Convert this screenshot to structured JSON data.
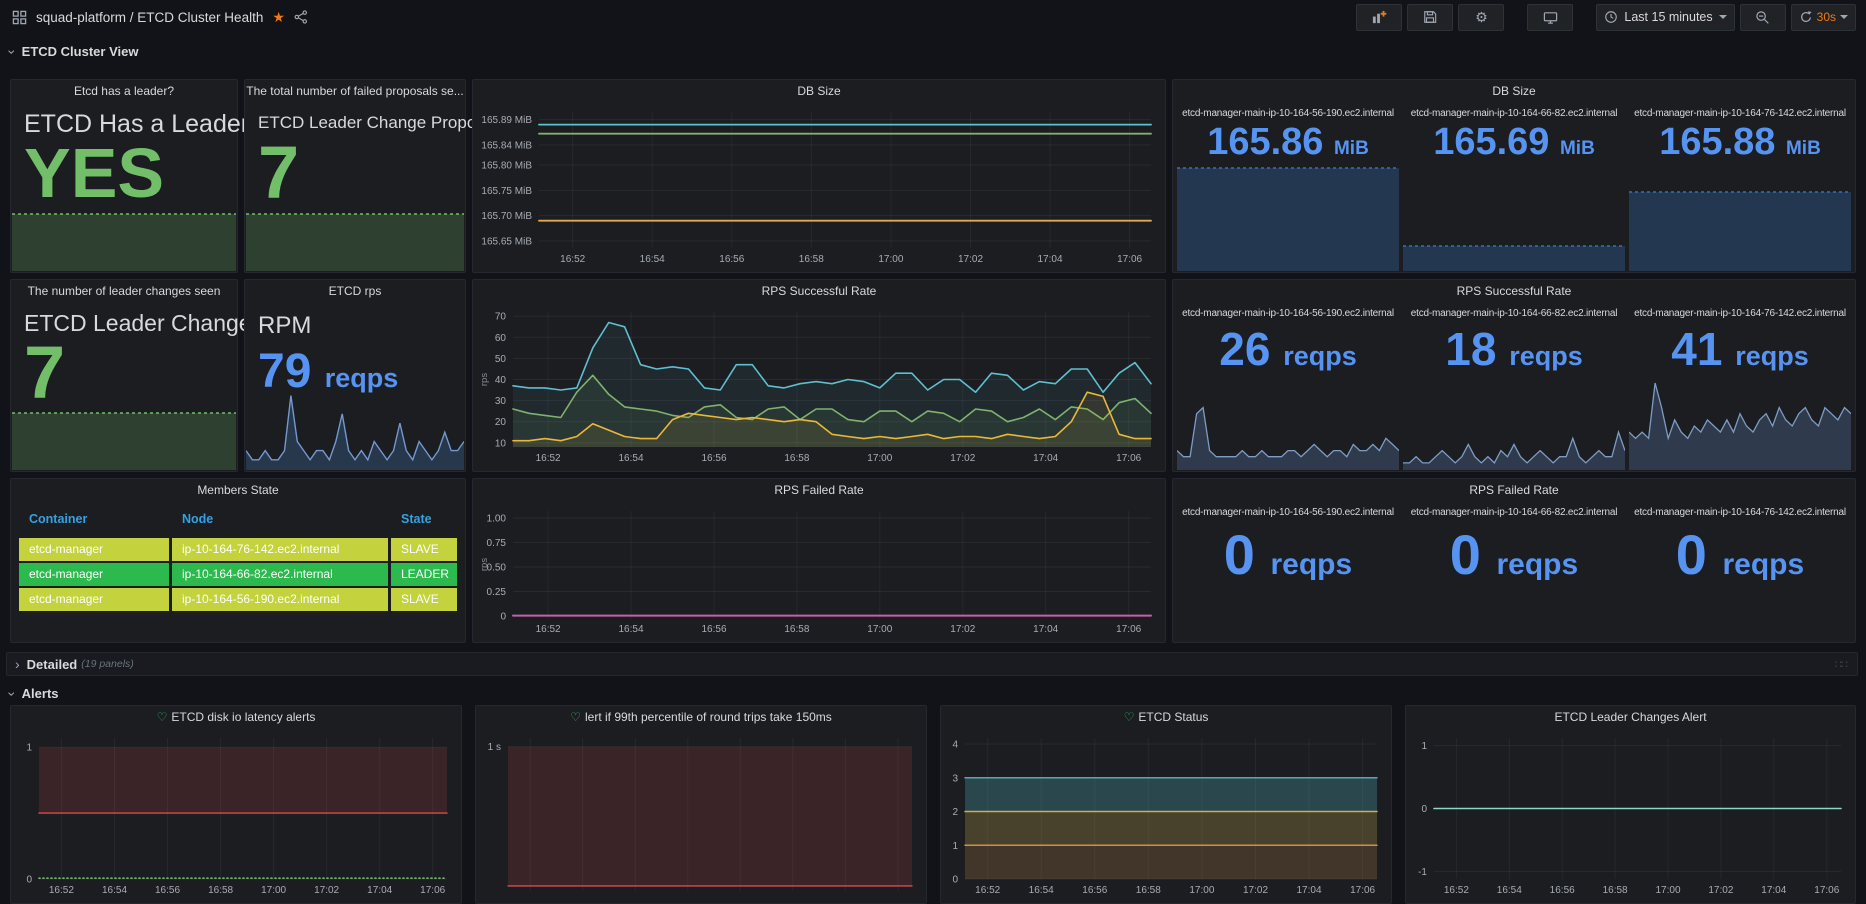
{
  "header": {
    "breadcrumb": "squad-platform / ETCD Cluster Health",
    "toolbar": {
      "time_range": "Last 15 minutes",
      "refresh_interval": "30s"
    }
  },
  "sections": {
    "cluster_view": {
      "label": "ETCD Cluster View"
    },
    "detailed": {
      "label": "Detailed",
      "meta": "(19 panels)"
    },
    "alerts": {
      "label": "Alerts"
    }
  },
  "time_ticks": [
    {
      "f": 0.055,
      "label": "16:52"
    },
    {
      "f": 0.185,
      "label": "16:54"
    },
    {
      "f": 0.315,
      "label": "16:56"
    },
    {
      "f": 0.445,
      "label": "16:58"
    },
    {
      "f": 0.575,
      "label": "17:00"
    },
    {
      "f": 0.705,
      "label": "17:02"
    },
    {
      "f": 0.835,
      "label": "17:04"
    },
    {
      "f": 0.965,
      "label": "17:06"
    }
  ],
  "panels": {
    "has_leader": {
      "title": "Etcd has a leader?",
      "subtitle": "ETCD Has a Leader?",
      "value": "YES",
      "spark": {
        "values": [
          1,
          1
        ],
        "yMax": 1,
        "color": "#73bf69",
        "dash": "3 3",
        "fillColor": "rgba(115,191,105,0.22)",
        "width": 1.5
      }
    },
    "proposals": {
      "title": "The total number of failed proposals se...",
      "subtitle": "ETCD Leader Change Proposals",
      "value": "7",
      "spark": {
        "values": [
          1,
          1
        ],
        "yMax": 1,
        "color": "#73bf69",
        "dash": "3 3",
        "fillColor": "rgba(115,191,105,0.22)",
        "width": 1.5
      }
    },
    "db_chart": {
      "title": "DB Size",
      "chart": {
        "ml": 62,
        "yMin": 165.636,
        "yMax": 165.905,
        "yTicks": [
          [
            165.89,
            "165.89 MiB"
          ],
          [
            165.84,
            "165.84 MiB"
          ],
          [
            165.8,
            "165.80 MiB"
          ],
          [
            165.75,
            "165.75 MiB"
          ],
          [
            165.7,
            "165.70 MiB"
          ],
          [
            165.65,
            "165.65 MiB"
          ]
        ],
        "xTicks": "time",
        "series": [
          {
            "color": "#5fc2ce",
            "width": 1.8,
            "values": [
              165.88,
              165.88
            ]
          },
          {
            "color": "#7eb26d",
            "width": 1.8,
            "values": [
              165.862,
              165.862
            ]
          },
          {
            "color": "#e2a94f",
            "width": 1.8,
            "values": [
              165.69,
              165.69
            ]
          }
        ]
      }
    },
    "db_stats": {
      "title": "DB Size",
      "stats": [
        {
          "label": "etcd-manager-main-ip-10-164-56-190.ec2.internal",
          "value": "165.86",
          "unit": "MiB"
        },
        {
          "label": "etcd-manager-main-ip-10-164-66-82.ec2.internal",
          "value": "165.69",
          "unit": "MiB"
        },
        {
          "label": "etcd-manager-main-ip-10-164-76-142.ec2.internal",
          "value": "165.88",
          "unit": "MiB"
        }
      ],
      "sparks": [
        {
          "values": [
            1,
            1
          ],
          "yMax": 1,
          "color": "#3f6ea8",
          "dash": "3 3",
          "fillColor": "rgba(46,89,140,0.45)",
          "width": 1.4
        },
        {
          "values": [
            1,
            1
          ],
          "yMax": 1,
          "color": "#3f6ea8",
          "dash": "3 3",
          "fillColor": "rgba(46,89,140,0.45)",
          "width": 1.4
        },
        {
          "values": [
            1,
            1
          ],
          "yMax": 1,
          "color": "#3f6ea8",
          "dash": "3 3",
          "fillColor": "rgba(46,89,140,0.45)",
          "width": 1.4
        }
      ]
    },
    "leader_changes": {
      "title": "The number of leader changes seen",
      "subtitle": "ETCD Leader Changes",
      "value": "7",
      "spark": {
        "values": [
          1,
          1
        ],
        "yMax": 1,
        "color": "#73bf69",
        "dash": "3 3",
        "fillColor": "rgba(115,191,105,0.22)",
        "width": 1.5
      }
    },
    "rpm": {
      "title": "ETCD rps",
      "subtitle": "RPM",
      "value": "79",
      "unit": "reqps",
      "spark": {
        "values": [
          2,
          1,
          1,
          2,
          1,
          1,
          2,
          8,
          3,
          2,
          1,
          2,
          2,
          1,
          3,
          6,
          2,
          1,
          2,
          1,
          3,
          2,
          1,
          2,
          5,
          2,
          1,
          3,
          2,
          1,
          2,
          4,
          2,
          2,
          3
        ],
        "yMax": 8.5,
        "color": "#7499cc",
        "fillColor": "rgba(70,115,175,0.30)",
        "width": 1.4
      }
    },
    "success_chart": {
      "title": "RPS Successful Rate",
      "chart": {
        "ml": 36,
        "ylabel": "rps",
        "yMin": 8,
        "yMax": 72,
        "yTicks": [
          [
            70,
            "70"
          ],
          [
            60,
            "60"
          ],
          [
            50,
            "50"
          ],
          [
            40,
            "40"
          ],
          [
            30,
            "30"
          ],
          [
            20,
            "20"
          ],
          [
            10,
            "10"
          ]
        ],
        "xTicks": "time",
        "series": [
          {
            "color": "#5fbfd0",
            "width": 1.6,
            "fillTo": 8,
            "fillColor": "rgba(95,191,208,0.08)",
            "values": [
              37,
              36,
              36,
              35,
              36,
              55,
              67,
              65,
              47,
              45,
              46,
              45,
              36,
              35,
              47,
              47,
              37,
              36,
              38,
              39,
              38,
              40,
              39,
              36,
              43,
              43,
              35,
              40,
              40,
              34,
              43,
              42,
              35,
              39,
              38,
              45,
              45,
              34,
              43,
              48,
              38
            ]
          },
          {
            "color": "#7eb26d",
            "width": 1.6,
            "fillTo": 8,
            "fillColor": "rgba(126,178,109,0.10)",
            "values": [
              26,
              24,
              23,
              22,
              34,
              42,
              33,
              27,
              26,
              25,
              23,
              22,
              27,
              28,
              22,
              21,
              26,
              27,
              21,
              26,
              26,
              21,
              20,
              25,
              25,
              20,
              25,
              24,
              20,
              26,
              25,
              20,
              22,
              26,
              21,
              27,
              26,
              21,
              29,
              31,
              24
            ]
          },
          {
            "color": "#eab839",
            "width": 1.6,
            "fillTo": 8,
            "fillColor": "rgba(234,184,57,0.10)",
            "values": [
              11,
              11,
              12,
              11,
              13,
              19,
              16,
              13,
              12,
              12,
              21,
              24,
              23,
              22,
              21,
              22,
              21,
              20,
              21,
              20,
              14,
              13,
              12,
              13,
              12,
              13,
              14,
              12,
              13,
              13,
              12,
              14,
              13,
              12,
              13,
              20,
              34,
              32,
              14,
              12,
              12
            ]
          }
        ]
      }
    },
    "success_stats": {
      "title": "RPS Successful Rate",
      "stats": [
        {
          "label": "etcd-manager-main-ip-10-164-56-190.ec2.internal",
          "value": "26",
          "unit": "reqps"
        },
        {
          "label": "etcd-manager-main-ip-10-164-66-82.ec2.internal",
          "value": "18",
          "unit": "reqps"
        },
        {
          "label": "etcd-manager-main-ip-10-164-76-142.ec2.internal",
          "value": "41",
          "unit": "reqps"
        }
      ],
      "sparks": [
        {
          "values": [
            3,
            2,
            2,
            9,
            10,
            3,
            2,
            2,
            2,
            2,
            3,
            2,
            2,
            3,
            2,
            2,
            2,
            3,
            3,
            2,
            3,
            4,
            3,
            2,
            3,
            3,
            2,
            4,
            3,
            3,
            4,
            3,
            5,
            4,
            3
          ],
          "yMax": 14,
          "color": "#7e9cc4",
          "fillColor": "rgba(100,140,190,0.28)",
          "width": 1.3
        },
        {
          "values": [
            1,
            1,
            2,
            1,
            1,
            2,
            3,
            2,
            1,
            2,
            4,
            2,
            1,
            2,
            1,
            3,
            2,
            4,
            2,
            1,
            2,
            3,
            2,
            1,
            2,
            2,
            5,
            2,
            1,
            2,
            3,
            2,
            2,
            6,
            3
          ],
          "yMax": 14,
          "color": "#7e9cc4",
          "fillColor": "rgba(100,140,190,0.28)",
          "width": 1.3
        },
        {
          "values": [
            6,
            5,
            6,
            5,
            14,
            10,
            5,
            8,
            6,
            5,
            7,
            6,
            8,
            7,
            6,
            8,
            6,
            9,
            7,
            6,
            8,
            9,
            7,
            10,
            8,
            7,
            9,
            10,
            8,
            7,
            10,
            9,
            8,
            10,
            9
          ],
          "yMax": 14,
          "color": "#7e9cc4",
          "fillColor": "rgba(100,140,190,0.28)",
          "width": 1.3
        }
      ]
    },
    "members": {
      "title": "Members State",
      "columns": [
        "Container",
        "Node",
        "State"
      ],
      "rows": [
        {
          "container": "etcd-manager",
          "node": "ip-10-164-76-142.ec2.internal",
          "state": "SLAVE",
          "bg": "#c3d23d"
        },
        {
          "container": "etcd-manager",
          "node": "ip-10-164-66-82.ec2.internal",
          "state": "LEADER",
          "bg": "#2cba4e"
        },
        {
          "container": "etcd-manager",
          "node": "ip-10-164-56-190.ec2.internal",
          "state": "SLAVE",
          "bg": "#c3d23d"
        }
      ],
      "colors": {
        "header_text": "#33a2e5",
        "slave_row": "#c3d23d",
        "leader_row": "#2cba4e"
      }
    },
    "failed_chart": {
      "title": "RPS Failed Rate",
      "chart": {
        "ml": 36,
        "ylabel": "rps",
        "yMin": -0.02,
        "yMax": 1.07,
        "yTicks": [
          [
            1,
            "1.00"
          ],
          [
            0.75,
            "0.75"
          ],
          [
            0.5,
            "0.50"
          ],
          [
            0.25,
            "0.25"
          ],
          [
            0,
            "0"
          ]
        ],
        "xTicks": "time",
        "series": [
          {
            "color": "#c75eb3",
            "width": 2,
            "values": [
              0.004,
              0.004
            ]
          }
        ]
      }
    },
    "failed_stats": {
      "title": "RPS Failed Rate",
      "stats": [
        {
          "label": "etcd-manager-main-ip-10-164-56-190.ec2.internal",
          "value": "0",
          "unit": "reqps"
        },
        {
          "label": "etcd-manager-main-ip-10-164-66-82.ec2.internal",
          "value": "0",
          "unit": "reqps"
        },
        {
          "label": "etcd-manager-main-ip-10-164-76-142.ec2.internal",
          "value": "0",
          "unit": "reqps"
        }
      ],
      "sparks": [
        {
          "values": [
            0.5,
            0.5
          ],
          "yMax": 1,
          "color": "#3f6ea8",
          "fillColor": "rgba(46,89,140,0.45)",
          "width": 1.2
        },
        {
          "values": [
            0.5,
            0.5
          ],
          "yMax": 1,
          "color": "#3f6ea8",
          "fillColor": "rgba(46,89,140,0.45)",
          "width": 1.2
        },
        {
          "values": [
            0.5,
            0.5
          ],
          "yMax": 1,
          "color": "#3f6ea8",
          "fillColor": "rgba(46,89,140,0.45)",
          "width": 1.2
        }
      ]
    },
    "alert_disk": {
      "title": "ETCD disk io latency alerts",
      "chart": {
        "ml": 24,
        "yMin": 0,
        "yMax": 1.07,
        "yTicks": [
          [
            1,
            "1"
          ],
          [
            0,
            "0"
          ]
        ],
        "xTicks": "time",
        "series": [
          {
            "color": "#e0484f",
            "width": 1.4,
            "fillTo": 1.0,
            "fillColor": "rgba(224,72,79,0.16)",
            "values": [
              0.5,
              0.5
            ]
          },
          {
            "color": "#73bf69",
            "width": 1.6,
            "dash": "1 3",
            "values": [
              0.006,
              0.006
            ]
          }
        ]
      }
    },
    "alert_rtt": {
      "title": "lert if 99th percentile of round trips take 150ms",
      "chart": {
        "ml": 28,
        "yMin": 0,
        "yMax": 1.06,
        "yTicks": [
          [
            1,
            "1 s"
          ]
        ],
        "xTicks": "time",
        "xLabels": false,
        "series": [
          {
            "color": "#e0484f",
            "width": 1.4,
            "fillTo": 1.0,
            "fillColor": "rgba(224,72,79,0.16)",
            "values": [
              0.035,
              0.035
            ]
          }
        ]
      }
    },
    "alert_status": {
      "title": "ETCD Status",
      "chart": {
        "ml": 20,
        "yMin": 0,
        "yMax": 4.18,
        "yTicks": [
          [
            4,
            "4"
          ],
          [
            3,
            "3"
          ],
          [
            2,
            "2"
          ],
          [
            1,
            "1"
          ],
          [
            0,
            "0"
          ]
        ],
        "xTicks": "time",
        "series": [
          {
            "color": "#52a8b5",
            "width": 1.5,
            "fillTo": 2,
            "fillColor": "rgba(82,168,181,0.30)",
            "values": [
              3,
              3
            ]
          },
          {
            "color": "#cfae4e",
            "width": 1.5,
            "fillTo": 1,
            "fillColor": "rgba(207,174,78,0.25)",
            "values": [
              2,
              2
            ]
          },
          {
            "color": "#cf8e4e",
            "width": 1.5,
            "fillTo": 0,
            "fillColor": "rgba(207,142,78,0.22)",
            "values": [
              1,
              1
            ]
          }
        ]
      }
    },
    "alert_leader": {
      "title": "ETCD Leader Changes Alert",
      "chart": {
        "ml": 24,
        "yMin": -1.12,
        "yMax": 1.12,
        "yTicks": [
          [
            1,
            "1"
          ],
          [
            0,
            "0"
          ],
          [
            -1,
            "-1"
          ]
        ],
        "xTicks": "time",
        "series": [
          {
            "color": "#8ed6c6",
            "width": 1.6,
            "values": [
              0,
              0
            ]
          }
        ]
      }
    }
  }
}
